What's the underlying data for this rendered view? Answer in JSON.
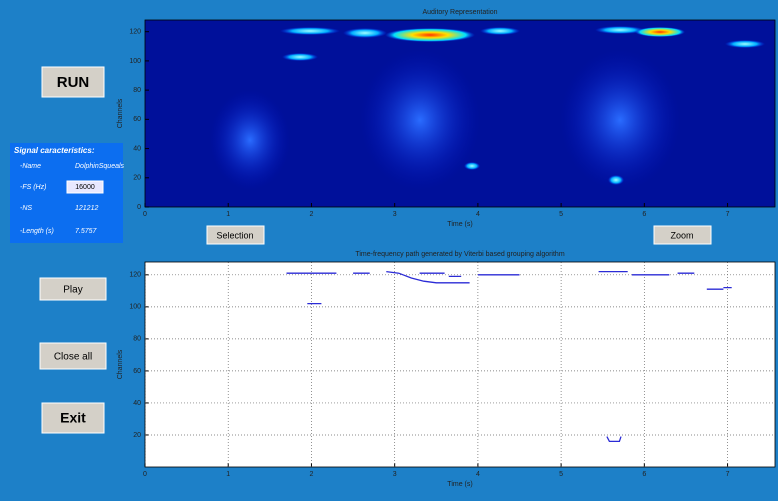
{
  "buttons": {
    "run": "RUN",
    "play": "Play",
    "close_all": "Close all",
    "exit": "Exit",
    "selection": "Selection",
    "zoom": "Zoom"
  },
  "signal_panel": {
    "title": "Signal caracteristics:",
    "rows": [
      [
        "-Name",
        "DolphinSqueals"
      ],
      [
        "-FS (Hz)",
        "16000"
      ],
      [
        "-NS",
        "121212"
      ],
      [
        "-Length (s)",
        "7.5757"
      ]
    ]
  },
  "plots": [
    {
      "title": "Auditory Representation",
      "xlabel": "Time (s)",
      "ylabel": "Channels",
      "xlim": [
        0,
        7.57
      ],
      "ylim": [
        0,
        128
      ],
      "xticks": [
        0,
        1,
        2,
        3,
        4,
        5,
        6,
        7
      ],
      "yticks": [
        0,
        20,
        40,
        60,
        80,
        100,
        120
      ],
      "grid": false
    },
    {
      "title": "Time-frequency path generated by Viterbi based grouping algorithm",
      "xlabel": "Time (s)",
      "ylabel": "Channels",
      "xlim": [
        0,
        7.57
      ],
      "ylim": [
        0,
        128
      ],
      "xticks": [
        0,
        1,
        2,
        3,
        4,
        5,
        6,
        7
      ],
      "yticks": [
        20,
        40,
        60,
        80,
        100,
        120
      ],
      "grid": true,
      "path": {
        "color": "#2b2bd6",
        "x": [
          1.7,
          2.3,
          null,
          1.95,
          2.12,
          null,
          2.5,
          2.7,
          null,
          2.9,
          3.05,
          3.2,
          3.35,
          3.5,
          3.9,
          null,
          3.3,
          3.6,
          null,
          3.65,
          3.8,
          null,
          4.0,
          4.5,
          null,
          5.45,
          5.8,
          null,
          5.85,
          6.3,
          null,
          6.4,
          6.6,
          null,
          6.75,
          6.95,
          null,
          6.95,
          7.05,
          null,
          5.55,
          5.58,
          5.7,
          5.72
        ],
        "y": [
          121,
          121,
          null,
          102,
          102,
          null,
          121,
          121,
          null,
          122,
          121,
          118,
          116,
          115,
          115,
          null,
          121,
          121,
          null,
          119,
          119,
          null,
          120,
          120,
          null,
          122,
          122,
          null,
          120,
          120,
          null,
          121,
          121,
          null,
          111,
          111,
          null,
          112,
          112,
          null,
          19,
          16,
          16,
          19
        ]
      }
    }
  ]
}
